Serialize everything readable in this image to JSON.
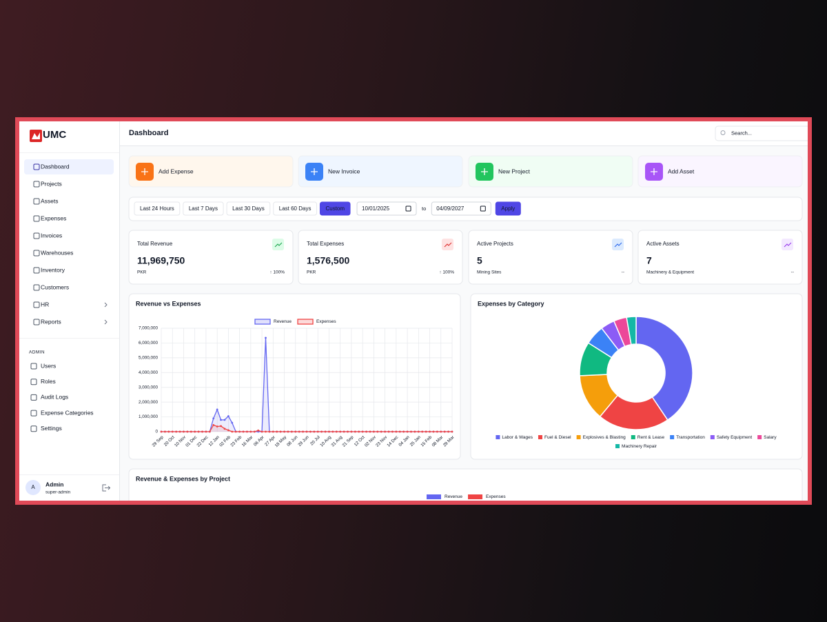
{
  "sidebar": {
    "logo": "UMC",
    "active": "Dashboard",
    "nav": [
      {
        "label": "Dashboard"
      },
      {
        "label": "Projects"
      },
      {
        "label": "Assets"
      },
      {
        "label": "Expenses"
      },
      {
        "label": "Invoices"
      },
      {
        "label": "Warehouses"
      },
      {
        "label": "Inventory"
      },
      {
        "label": "Customers"
      },
      {
        "label": "HR",
        "submenu": true
      },
      {
        "label": "Reports",
        "submenu": true
      }
    ],
    "admin_heading": "ADMIN",
    "admin_nav": [
      "Users",
      "Roles",
      "Audit Logs",
      "Expense Categories",
      "Settings"
    ],
    "user": {
      "avatar": "A",
      "name": "Admin",
      "role": "super-admin"
    }
  },
  "header": {
    "title": "Dashboard",
    "search_placeholder": "Search..."
  },
  "quick_actions": [
    {
      "label": "Add Expense",
      "color": "#f97316",
      "background": "#fff7ed"
    },
    {
      "label": "New Invoice",
      "color": "#3b82f6",
      "background": "#eff6ff"
    },
    {
      "label": "New Project",
      "color": "#22c55e",
      "background": "#f0fdf4"
    },
    {
      "label": "Add Asset",
      "color": "#a855f7",
      "background": "#faf5ff"
    }
  ],
  "filters": {
    "ranges": [
      "Last 24 Hours",
      "Last 7 Days",
      "Last 30 Days",
      "Last 60 Days",
      "Custom"
    ],
    "active": "Custom",
    "from": "10/01/2025",
    "separator": "to",
    "to": "04/09/2027",
    "apply": "Apply"
  },
  "stats": [
    {
      "title": "Total Revenue",
      "value": "11,969,750",
      "unit": "PKR",
      "change": "↑ 100%",
      "change_color": "#16a34a",
      "icon_color": "#16a34a",
      "icon_background": "#dcfce7"
    },
    {
      "title": "Total Expenses",
      "value": "1,576,500",
      "unit": "PKR",
      "change": "↑ 100%",
      "change_color": "#16a34a",
      "icon_color": "#dc2626",
      "icon_background": "#fee2e2"
    },
    {
      "title": "Active Projects",
      "value": "5",
      "unit": "Mining Sites",
      "change": "--",
      "change_color": "#9ca3af",
      "icon_color": "#2563eb",
      "icon_background": "#dbeafe"
    },
    {
      "title": "Active Assets",
      "value": "7",
      "unit": "Machinery & Equipment",
      "change": "--",
      "change_color": "#9ca3af",
      "icon_color": "#9333ea",
      "icon_background": "#f3e8ff"
    }
  ],
  "chart_data": [
    {
      "type": "line",
      "title": "Revenue vs Expenses",
      "categories": [
        "29 Sep",
        null,
        null,
        "20 Oct",
        null,
        null,
        "10 Nov",
        null,
        null,
        "01 Dec",
        null,
        null,
        "22 Dec",
        null,
        null,
        "12 Jan",
        null,
        null,
        "02 Feb",
        null,
        null,
        "23 Feb",
        null,
        null,
        "16 Mar",
        null,
        null,
        "06 Apr",
        null,
        null,
        "27 Apr",
        null,
        null,
        "18 May",
        null,
        null,
        "08 Jun",
        null,
        null,
        "29 Jun",
        null,
        null,
        "20 Jul",
        null,
        null,
        "10 Aug",
        null,
        null,
        "31 Aug",
        null,
        null,
        "21 Sep",
        null,
        null,
        "12 Oct",
        null,
        null,
        "02 Nov",
        null,
        null,
        "23 Nov",
        null,
        null,
        "14 Dec",
        null,
        null,
        "04 Jan",
        null,
        null,
        "25 Jan",
        null,
        null,
        "15 Feb",
        null,
        null,
        "08 Mar",
        null,
        null,
        "29 Mar"
      ],
      "series": [
        {
          "name": "Revenue",
          "color": "#6366f1",
          "values": [
            0,
            0,
            0,
            0,
            0,
            0,
            0,
            0,
            0,
            0,
            0,
            0,
            0,
            0,
            900000,
            1500000,
            800000,
            800000,
            1050000,
            600000,
            0,
            0,
            0,
            0,
            0,
            0,
            0,
            0,
            6350000,
            0,
            0,
            0,
            0,
            0,
            0,
            0,
            0,
            0,
            0,
            0,
            0,
            0,
            0,
            0,
            0,
            0,
            0,
            0,
            0,
            0,
            0,
            0,
            0,
            0,
            0,
            0,
            0,
            0,
            0,
            0,
            0,
            0,
            0,
            0,
            0,
            0,
            0,
            0,
            0,
            0,
            0,
            0,
            0,
            0,
            0,
            0,
            0,
            0,
            0
          ]
        },
        {
          "name": "Expenses",
          "color": "#ef4444",
          "values": [
            0,
            0,
            0,
            0,
            0,
            0,
            0,
            0,
            0,
            0,
            0,
            0,
            0,
            0,
            450000,
            350000,
            380000,
            200000,
            100000,
            0,
            0,
            0,
            0,
            0,
            0,
            0,
            80000,
            0,
            0,
            0,
            0,
            0,
            0,
            0,
            0,
            0,
            0,
            0,
            0,
            0,
            0,
            0,
            0,
            0,
            0,
            0,
            0,
            0,
            0,
            0,
            0,
            0,
            0,
            0,
            0,
            0,
            0,
            0,
            0,
            0,
            0,
            0,
            0,
            0,
            0,
            0,
            0,
            0,
            0,
            0,
            0,
            0,
            0,
            0,
            0,
            0,
            0,
            0,
            0
          ]
        }
      ],
      "ylim": [
        0,
        7000000
      ],
      "yticks": [
        0,
        {
          "value": 1000000,
          "label": "1,000,000"
        },
        {
          "value": 2000000,
          "label": "2,000,000"
        },
        {
          "value": 3000000,
          "label": "3,000,000"
        },
        {
          "value": 4000000,
          "label": "4,000,000"
        },
        {
          "value": 5000000,
          "label": "5,000,000"
        },
        {
          "value": 6000000,
          "label": "6,000,000"
        },
        {
          "value": 7000000,
          "label": "7,000,000"
        }
      ],
      "grid": true,
      "legend": "top"
    },
    {
      "type": "pie",
      "title": "Expenses by Category",
      "categories": [
        "Labor & Wages",
        "Fuel & Diesel",
        "Explosives & Blasting",
        "Rent & Lease",
        "Transportation",
        "Safety Equipment",
        "Salary",
        "Machinery Repair"
      ],
      "values": [
        40.5,
        20.4,
        13.2,
        9.7,
        5.6,
        4,
        3.7,
        2.7
      ],
      "colors": [
        "#6366f1",
        "#ef4444",
        "#f59e0b",
        "#10b981",
        "#3b82f6",
        "#8b5cf6",
        "#ec4899",
        "#14b8a6"
      ],
      "donut": true,
      "legend": "bottom"
    },
    {
      "type": "bar",
      "title": "Revenue & Expenses by Project",
      "series": [
        {
          "name": "Revenue",
          "color": "#6366f1"
        },
        {
          "name": "Expenses",
          "color": "#ef4444"
        }
      ],
      "legend": "top"
    }
  ]
}
